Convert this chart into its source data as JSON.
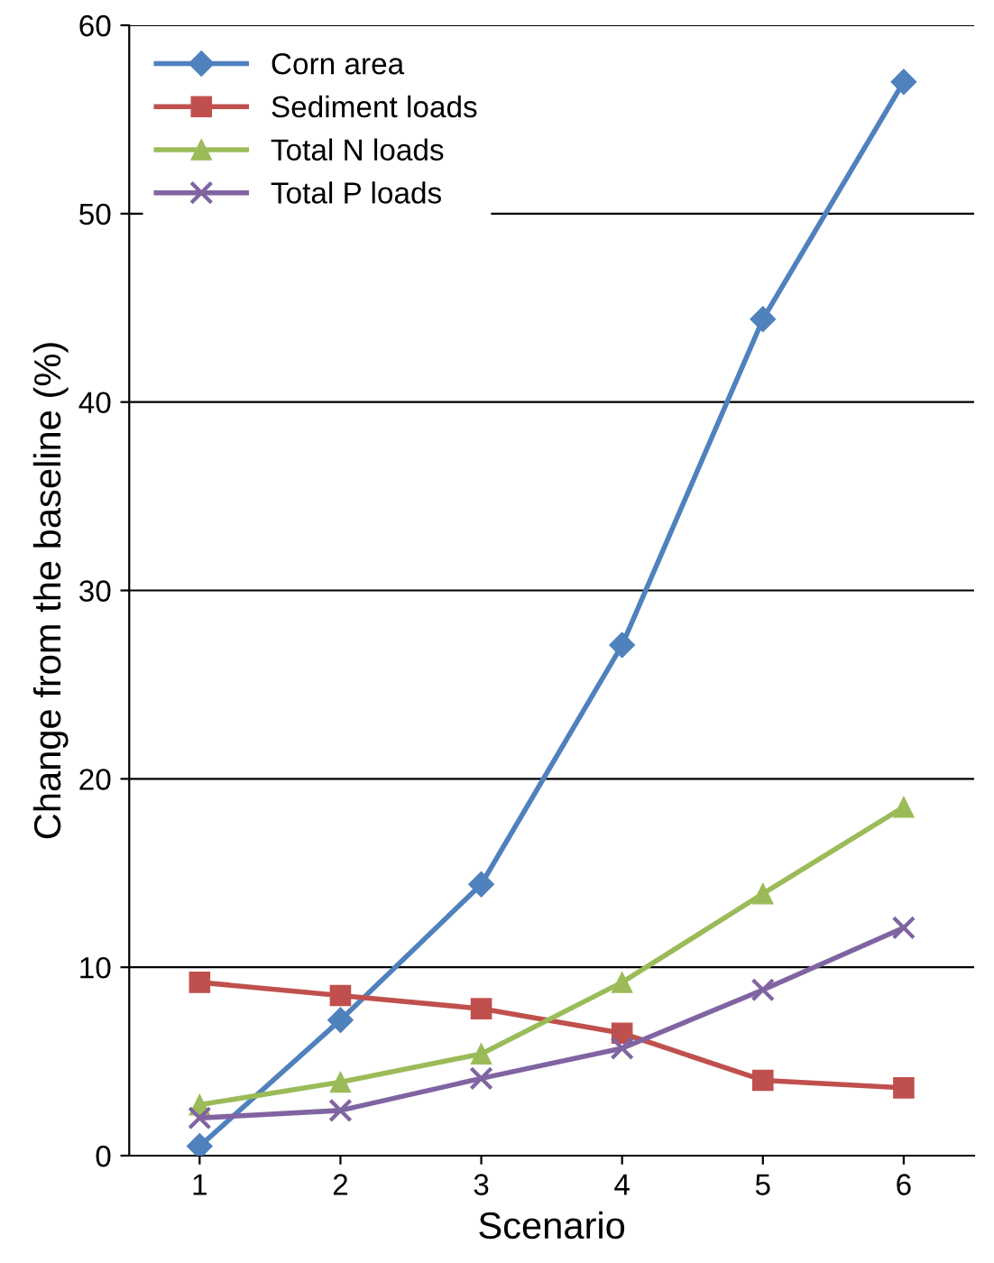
{
  "chart_data": {
    "type": "line",
    "xlabel": "Scenario",
    "ylabel": "Change from the baseline (%)",
    "categories": [
      "1",
      "2",
      "3",
      "4",
      "5",
      "6"
    ],
    "series": [
      {
        "name": "Corn area",
        "color": "#4f81bd",
        "marker": "diamond",
        "values": [
          0.5,
          7.2,
          14.4,
          27.1,
          44.4,
          57.0
        ]
      },
      {
        "name": "Sediment loads",
        "color": "#c0504d",
        "marker": "square",
        "values": [
          9.2,
          8.5,
          7.8,
          6.5,
          4.0,
          3.6
        ]
      },
      {
        "name": "Total N loads",
        "color": "#9bbb59",
        "marker": "triangle",
        "values": [
          2.7,
          3.9,
          5.4,
          9.2,
          13.9,
          18.5
        ]
      },
      {
        "name": "Total P loads",
        "color": "#8064a2",
        "marker": "cross",
        "values": [
          2.0,
          2.4,
          4.1,
          5.7,
          8.8,
          12.1
        ]
      }
    ],
    "ylim": [
      0,
      60
    ],
    "yticks": [
      0,
      10,
      20,
      30,
      40,
      50,
      60
    ],
    "grid": "y",
    "legend": "top left",
    "line_style": "solid"
  }
}
